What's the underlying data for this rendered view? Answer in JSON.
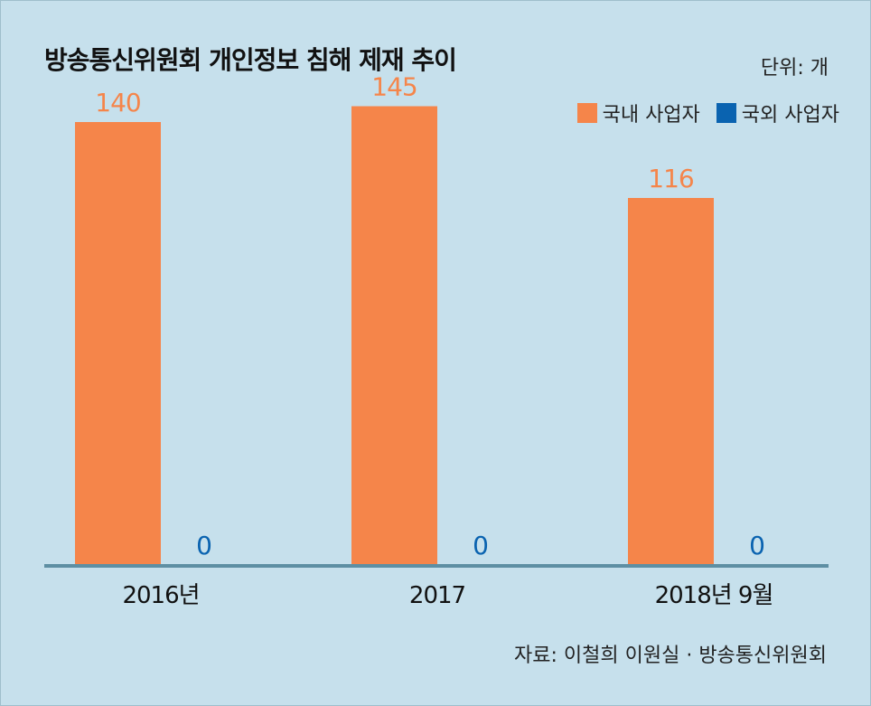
{
  "header": {
    "title": "방송통신위원회 개인정보 침해 제재 추이",
    "unit": "단위: 개"
  },
  "footer": {
    "source": "자료: 이철희 이원실 · 방송통신위원회"
  },
  "colors": {
    "domestic": "#f5854a",
    "foreign": "#0a63b0",
    "axis": "#5e8fa3",
    "background": "#c6e0ec"
  },
  "chart_data": {
    "type": "bar",
    "title": "방송통신위원회 개인정보 침해 제재 추이",
    "unit": "단위: 개",
    "categories": [
      "2016년",
      "2017",
      "2018년 9월"
    ],
    "series": [
      {
        "name": "국내 사업자",
        "color": "#f5854a",
        "values": [
          140,
          145,
          116
        ]
      },
      {
        "name": "국외 사업자",
        "color": "#0a63b0",
        "values": [
          0,
          0,
          0
        ]
      }
    ],
    "ylim": [
      0,
      160
    ],
    "legend": "top-right",
    "grid": false,
    "data_labels": true
  }
}
